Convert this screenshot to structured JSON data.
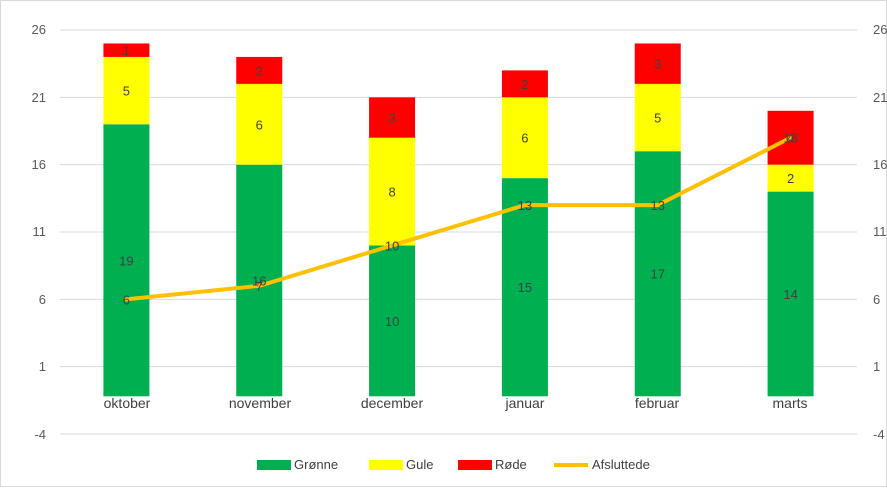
{
  "chart_data": {
    "type": "bar",
    "stacked": true,
    "categories": [
      "oktober",
      "november",
      "december",
      "januar",
      "februar",
      "marts"
    ],
    "series": [
      {
        "name": "Grønne",
        "kind": "bar",
        "color": "#00b050",
        "values": [
          19,
          16,
          10,
          15,
          17,
          14
        ]
      },
      {
        "name": "Gule",
        "kind": "bar",
        "color": "#ffff00",
        "values": [
          5,
          6,
          8,
          6,
          5,
          2
        ]
      },
      {
        "name": "Røde",
        "kind": "bar",
        "color": "#ff0000",
        "values": [
          1,
          2,
          3,
          2,
          3,
          4
        ]
      },
      {
        "name": "Afsluttede",
        "kind": "line",
        "color": "#ffc000",
        "values": [
          6,
          7,
          10,
          13,
          13,
          18
        ]
      }
    ],
    "green_labels": [
      "19",
      "16",
      "10",
      "15",
      "17",
      "14"
    ],
    "yellow_labels": [
      "5",
      "6",
      "8",
      "6",
      "5",
      "2"
    ],
    "red_labels": [
      "1",
      "2",
      "3",
      "2",
      "3",
      "4"
    ],
    "line_labels": [
      "6",
      "7",
      "10",
      "13",
      "13",
      "18"
    ],
    "ylim": [
      -4,
      26
    ],
    "yticks": [
      "26",
      "21",
      "16",
      "11",
      "6",
      "1",
      "-4"
    ],
    "y2ticks": [
      "26",
      "21",
      "16",
      "11",
      "6",
      "1",
      "-4"
    ],
    "grid": true,
    "legend_position": "bottom"
  }
}
